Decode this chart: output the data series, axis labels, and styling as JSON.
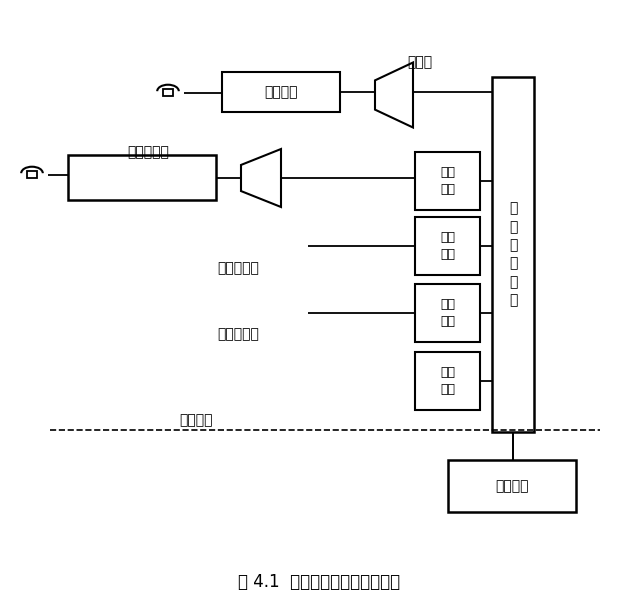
{
  "title": "图 4.1  程控数字交换机基本结构",
  "labels": {
    "yonghuji": "用户级",
    "yuanduan": "远端用户级",
    "shuzizhongji": "数字中继线",
    "monizhongji": "模拟中继线",
    "hualu": "话路设备",
    "yonghu_dianlu": "用户电路",
    "shuzi_jiaohuanwangluo": "数\n字\n交\n换\n网\n络",
    "shuzi_zhongduan1": "数字\n终端",
    "shuzi_zhongduan2": "数字\n终端",
    "moni_zhongduan": "模拟\n终端",
    "xinling_bujian": "信令\n部件",
    "kongzhi_shebei": "控制设备"
  },
  "bg_color": "#ffffff",
  "line_color": "#000000",
  "box_color": "#ffffff",
  "font_size": 10,
  "title_font_size": 12
}
